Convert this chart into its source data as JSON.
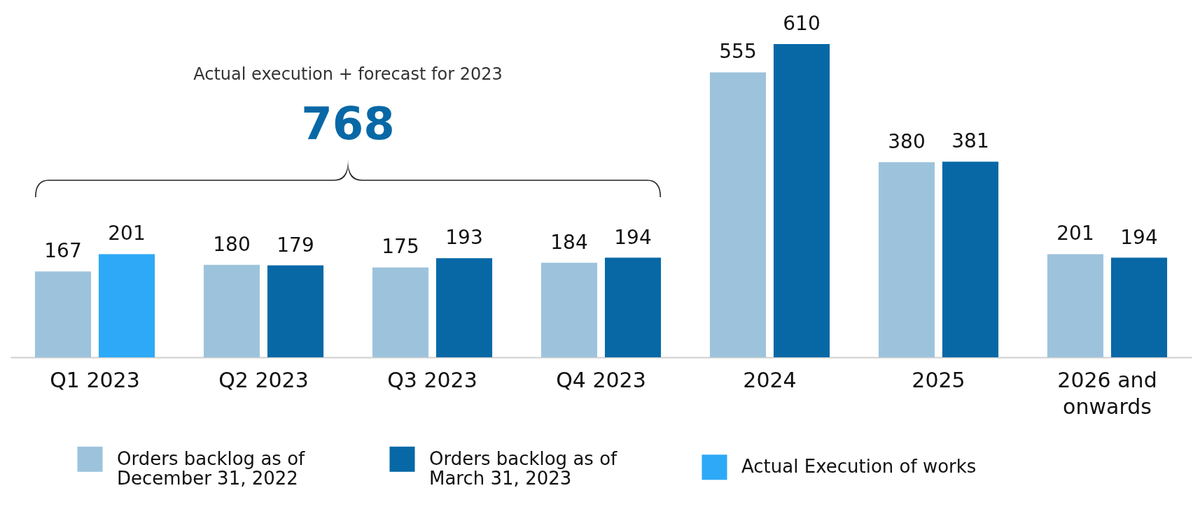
{
  "chart_data": {
    "type": "bar",
    "categories": [
      "Q1 2023",
      "Q2 2023",
      "Q3 2023",
      "Q4 2023",
      "2024",
      "2025",
      "2026 and onwards"
    ],
    "series": [
      {
        "name": "Orders backlog as of December 31, 2022",
        "color": "#9dc3dc",
        "values": [
          167,
          180,
          175,
          184,
          555,
          380,
          201
        ]
      },
      {
        "name": "Orders backlog as of March 31, 2023",
        "color": "#0868a6",
        "values": [
          null,
          179,
          193,
          194,
          610,
          381,
          194
        ]
      },
      {
        "name": "Actual Execution of works",
        "color": "#2ea9f7",
        "values": [
          201,
          null,
          null,
          null,
          null,
          null,
          null
        ]
      }
    ],
    "data_labels": true,
    "legend": "bottom",
    "tick_labels": "x",
    "annotations": [
      "Actual execution + forecast for 2023",
      "768"
    ]
  }
}
